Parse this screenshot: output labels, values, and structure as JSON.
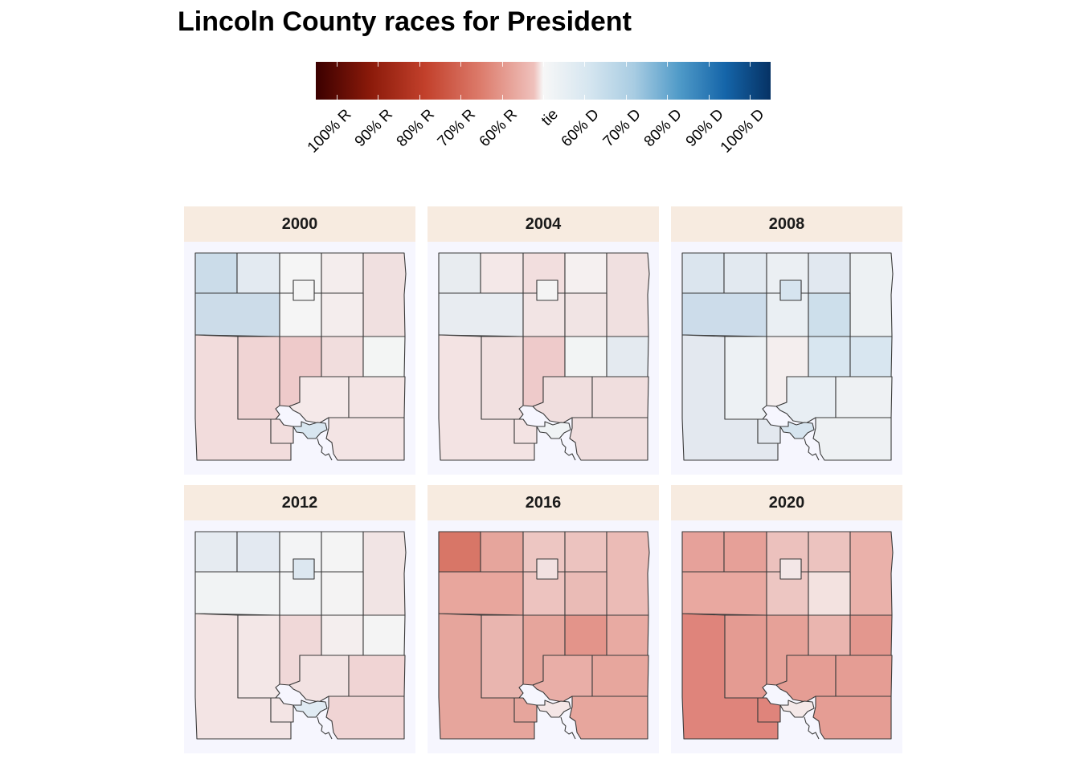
{
  "title": "Lincoln County races for President",
  "legend": {
    "labels": [
      "100% R",
      "90% R",
      "80% R",
      "70% R",
      "60% R",
      "tie",
      "60% D",
      "70% D",
      "80% D",
      "90% D",
      "100% D"
    ]
  },
  "regions": [
    "nw1",
    "nw2",
    "nc_top",
    "ne1",
    "ne2",
    "w_mid",
    "nc_bot",
    "ne_mid",
    "sw",
    "sc1",
    "sc2",
    "se1",
    "se2",
    "s_ctr",
    "s_sw",
    "s_se",
    "city",
    "town"
  ],
  "panels": [
    {
      "year": "2000",
      "colors": {
        "nw1": "#cbdce9",
        "nw2": "#e3eaf1",
        "nc_top": "#f5f5f5",
        "ne1": "#f4eded",
        "ne2": "#f0e0e0",
        "w_mid": "#ccdce9",
        "nc_bot": "#f5f5f5",
        "ne_mid": "#f4eded",
        "sw": "#f2dcdc",
        "sc1": "#f0d4d4",
        "sc2": "#eecaca",
        "se1": "#f1dddd",
        "se2": "#f3f5f4",
        "s_ctr": "#f5e9e9",
        "s_sw": "#f2dddd",
        "s_se": "#f3e4e4",
        "city": "#d8e6f0",
        "town": "#f4f4f4"
      }
    },
    {
      "year": "2004",
      "colors": {
        "nw1": "#e8ecf0",
        "nw2": "#f4e8e8",
        "nc_top": "#f2dede",
        "ne1": "#f5f0f0",
        "ne2": "#f0e0e0",
        "w_mid": "#e8ecf1",
        "nc_bot": "#f2e4e4",
        "ne_mid": "#f1e4e4",
        "sw": "#f3e3e3",
        "sc1": "#f1e0e0",
        "sc2": "#eecaca",
        "se1": "#f2f4f4",
        "se2": "#e4eaf0",
        "s_ctr": "#f0dede",
        "s_sw": "#f3e3e3",
        "s_se": "#f0dede",
        "city": "#f0f3f5",
        "town": "#f4f4f4"
      }
    },
    {
      "year": "2008",
      "colors": {
        "nw1": "#dbe5ee",
        "nw2": "#e2e9f0",
        "nc_top": "#ebeff3",
        "ne1": "#e1e8f0",
        "ne2": "#edf1f3",
        "w_mid": "#ccdcea",
        "nc_bot": "#eaeff3",
        "ne_mid": "#cddfeb",
        "sw": "#e3e8ef",
        "sc1": "#edf1f4",
        "sc2": "#f4eeee",
        "se1": "#d8e6f0",
        "se2": "#d8e6f0",
        "s_ctr": "#e8eef3",
        "s_sw": "#e3e8ef",
        "s_se": "#eef1f3",
        "city": "#d6e4ef",
        "town": "#d6e4ef"
      }
    },
    {
      "year": "2012",
      "colors": {
        "nw1": "#e6ebf1",
        "nw2": "#e3e9f1",
        "nc_top": "#f3f4f5",
        "ne1": "#f4f4f4",
        "ne2": "#f1e4e4",
        "w_mid": "#f1f3f4",
        "nc_bot": "#f3f4f5",
        "ne_mid": "#f4f3f3",
        "sw": "#f3e4e4",
        "sc1": "#f3e7e7",
        "sc2": "#f0d8d8",
        "se1": "#f4eeee",
        "se2": "#f4f4f4",
        "s_ctr": "#f2e2e2",
        "s_sw": "#f3e4e4",
        "s_se": "#f0d4d4",
        "city": "#e0ebf3",
        "town": "#dce7f0"
      }
    },
    {
      "year": "2016",
      "colors": {
        "nw1": "#d87667",
        "nw2": "#e6a59c",
        "nc_top": "#edc6c2",
        "ne1": "#ecc3bf",
        "ne2": "#ebbbb6",
        "w_mid": "#e8a69d",
        "nc_bot": "#edc3bf",
        "ne_mid": "#eabbb6",
        "sw": "#e6a59c",
        "sc1": "#e9b5af",
        "sc2": "#e6a59c",
        "se1": "#e3948a",
        "se2": "#e8aaa2",
        "s_ctr": "#e9aea7",
        "s_sw": "#e6a59c",
        "s_se": "#e7a69d",
        "city": "#f4e6e6",
        "town": "#f2e1e1"
      }
    },
    {
      "year": "2020",
      "colors": {
        "nw1": "#e6a19a",
        "nw2": "#e6a098",
        "nc_top": "#ecc1bd",
        "ne1": "#ecc3bf",
        "ne2": "#eab1aa",
        "w_mid": "#e9a8a0",
        "nc_bot": "#edc6c2",
        "ne_mid": "#f3e2e0",
        "sw": "#df847b",
        "sc1": "#e49b92",
        "sc2": "#e6a198",
        "se1": "#eab5af",
        "se2": "#e3978e",
        "s_ctr": "#e59d94",
        "s_sw": "#df847b",
        "s_se": "#e59d94",
        "city": "#f4e8e8",
        "town": "#f3e7e7"
      }
    }
  ]
}
